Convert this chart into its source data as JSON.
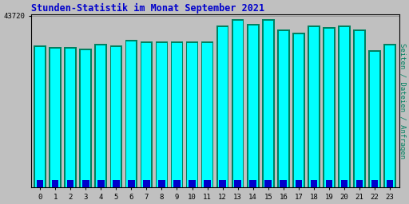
{
  "title": "Stunden-Statistik im Monat September 2021",
  "ylabel": "Seiten / Dateien / Anfragen",
  "xlabel_values": [
    0,
    1,
    2,
    3,
    4,
    5,
    6,
    7,
    8,
    9,
    10,
    11,
    12,
    13,
    14,
    15,
    16,
    17,
    18,
    19,
    20,
    21,
    22,
    23
  ],
  "ytick_label": "43720",
  "background_color": "#c0c0c0",
  "plot_bg_color": "#c0c0c0",
  "bar_color_cyan": "#00ffff",
  "bar_color_teal": "#008060",
  "bar_color_blue": "#0000cc",
  "title_color": "#0000cc",
  "ylabel_color": "#008060",
  "ytick_color": "#000000",
  "xtick_color": "#000000",
  "cyan_heights": [
    35800,
    35400,
    35400,
    35000,
    36200,
    35800,
    37200,
    36800,
    36800,
    36800,
    36800,
    36800,
    40700,
    42400,
    41100,
    42400,
    39800,
    38900,
    40700,
    40300,
    40700,
    39800,
    34500,
    36200
  ],
  "teal_heights": [
    36200,
    35800,
    35800,
    35400,
    36600,
    36200,
    37600,
    37200,
    37200,
    37200,
    37200,
    37200,
    41100,
    42800,
    41500,
    42800,
    40200,
    39300,
    41100,
    40700,
    41100,
    40200,
    34900,
    36600
  ],
  "blue_heights": [
    1800,
    1800,
    1800,
    1800,
    1800,
    1800,
    1800,
    1800,
    1800,
    1800,
    1800,
    1800,
    1800,
    1800,
    1800,
    1800,
    1800,
    1800,
    1800,
    1800,
    1800,
    1800,
    1800,
    1800
  ],
  "max_value": 43720,
  "ylim_max": 43720
}
